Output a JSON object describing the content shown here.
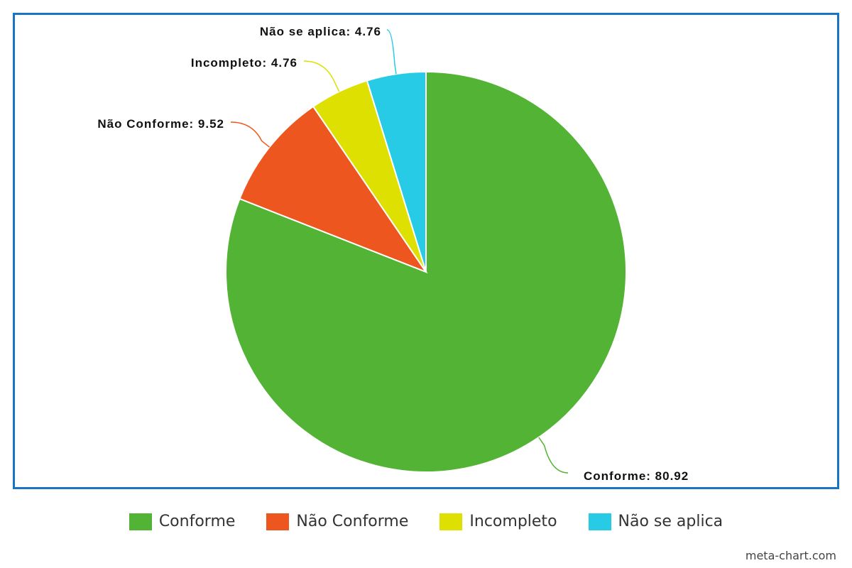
{
  "chart_data": {
    "type": "pie",
    "title": "",
    "slices": [
      {
        "name": "Conforme",
        "value": 80.92,
        "label": "Conforme: 80.92",
        "color": "#52b334"
      },
      {
        "name": "Não Conforme",
        "value": 9.52,
        "label": "Não Conforme: 9.52",
        "color": "#ee561f"
      },
      {
        "name": "Incompleto",
        "value": 4.76,
        "label": "Incompleto: 4.76",
        "color": "#dde000"
      },
      {
        "name": "Não se aplica",
        "value": 4.76,
        "label": "Não se aplica: 4.76",
        "color": "#28cbe6"
      }
    ],
    "start_angle": "12 o'clock",
    "direction": "clockwise",
    "legend_position": "bottom-center"
  },
  "legend": {
    "items": [
      {
        "label": "Conforme",
        "color": "#52b334"
      },
      {
        "label": "Não Conforme",
        "color": "#ee561f"
      },
      {
        "label": "Incompleto",
        "color": "#dde000"
      },
      {
        "label": "Não se aplica",
        "color": "#28cbe6"
      }
    ]
  },
  "watermark": "meta-chart.com",
  "colors": {
    "frame_border": "#1a73c3"
  }
}
